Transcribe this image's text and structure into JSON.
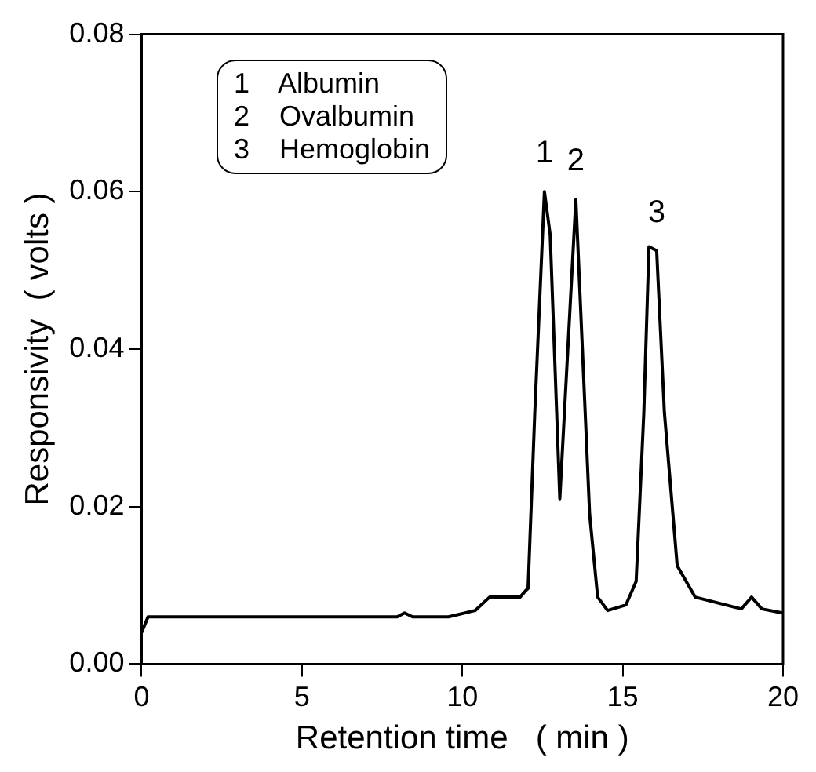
{
  "chart_data": {
    "type": "line",
    "xlabel": "Retention time   ( min )",
    "ylabel": "Responsivity  ( volts )",
    "xlim": [
      0,
      20
    ],
    "xticks": [
      0,
      5,
      10,
      15,
      20
    ],
    "ylim": [
      0,
      0.08
    ],
    "yticks": [
      {
        "value": 0,
        "label": "0.00"
      },
      {
        "value": 0.02,
        "label": "0.02"
      },
      {
        "value": 0.04,
        "label": "0.04"
      },
      {
        "value": 0.06,
        "label": "0.06"
      },
      {
        "value": 0.08,
        "label": "0.08"
      }
    ],
    "grid": false,
    "legend": false,
    "marker": "none",
    "line_style": "solid",
    "series": [
      {
        "color": "#000000",
        "x": [
          0,
          0.2,
          2,
          4,
          6,
          7.97,
          8.2,
          8.45,
          9.57,
          10.4,
          10.85,
          11.8,
          11.97,
          12.05,
          12.26,
          12.56,
          12.74,
          13.04,
          13.54,
          13.97,
          14.22,
          14.53,
          15.1,
          15.42,
          15.66,
          15.82,
          16.06,
          16.3,
          16.7,
          17.26,
          18.7,
          19.02,
          19.34,
          19.98
        ],
        "values": [
          0.004,
          0.006,
          0.006,
          0.006,
          0.006,
          0.006,
          0.0065,
          0.006,
          0.006,
          0.0068,
          0.0085,
          0.0085,
          0.0093,
          0.0096,
          0.032,
          0.06,
          0.0545,
          0.021,
          0.059,
          0.019,
          0.0085,
          0.0068,
          0.0075,
          0.0105,
          0.032,
          0.053,
          0.0525,
          0.032,
          0.0125,
          0.0085,
          0.007,
          0.0085,
          0.007,
          0.0065
        ]
      }
    ],
    "annotations": [
      {
        "text": "1",
        "x": 12.56,
        "y": 0.06
      },
      {
        "text": "2",
        "x": 13.54,
        "y": 0.059
      },
      {
        "text": "3",
        "x": 16.06,
        "y": 0.0525
      },
      "1 Albumin",
      "2 Ovalbumin",
      "3 Hemoglobin"
    ]
  }
}
